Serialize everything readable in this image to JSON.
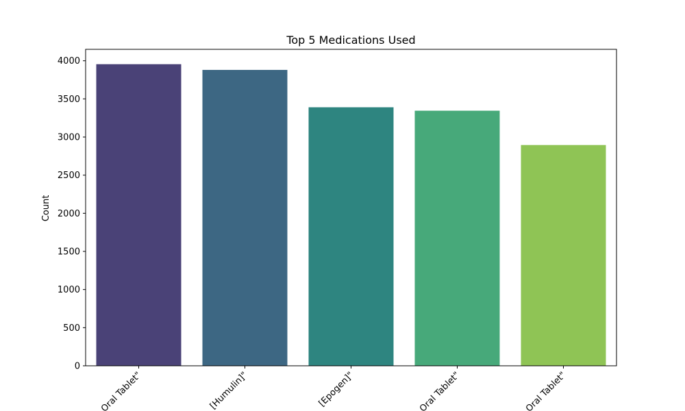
{
  "chart_data": {
    "type": "bar",
    "title": "Top 5 Medications Used",
    "xlabel": "",
    "ylabel": "Count",
    "categories": [
      "Oral Tablet\"",
      "[Humulin]\"",
      "[Epogen]\"",
      "Oral Tablet\"",
      "Oral Tablet\""
    ],
    "values": [
      3955,
      3880,
      3390,
      3345,
      2895
    ],
    "colors": [
      "#4a4277",
      "#3d6783",
      "#2e8580",
      "#47a97a",
      "#8fc455"
    ],
    "ylim": [
      0,
      4150
    ],
    "yticks": [
      0,
      500,
      1000,
      1500,
      2000,
      2500,
      3000,
      3500,
      4000
    ],
    "grid": false,
    "legend": false
  }
}
